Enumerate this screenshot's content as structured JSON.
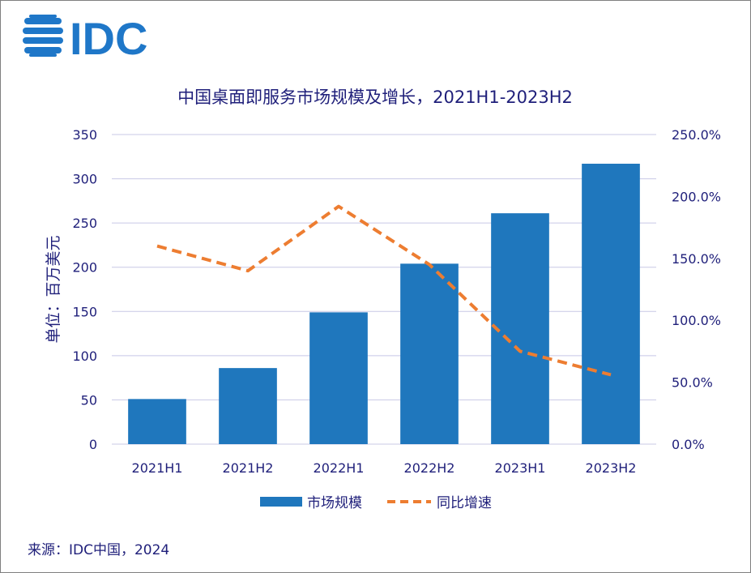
{
  "logo": {
    "text": "IDC"
  },
  "source": "来源：IDC中国，2024",
  "colors": {
    "bar": "#1f77bd",
    "line": "#ed7d31",
    "text": "#1f1f7a",
    "grid": "#c8c8e6",
    "logo": "#1f77c8"
  },
  "chart_data": {
    "type": "bar",
    "title": "中国桌面即服务市场规模及增长，2021H1-2023H2",
    "categories": [
      "2021H1",
      "2021H2",
      "2022H1",
      "2022H2",
      "2023H1",
      "2023H2"
    ],
    "ylabel": "单位：百万美元",
    "ylim": [
      0,
      350
    ],
    "yticks": [
      "0",
      "50",
      "100",
      "150",
      "200",
      "250",
      "300",
      "350"
    ],
    "y2lim": [
      0,
      250
    ],
    "y2ticks": [
      "0.0%",
      "50.0%",
      "100.0%",
      "150.0%",
      "200.0%",
      "250.0%"
    ],
    "series": [
      {
        "name": "市场规模",
        "type": "bar",
        "axis": "left",
        "values": [
          51,
          86,
          149,
          204,
          261,
          317
        ]
      },
      {
        "name": "同比增速",
        "type": "line",
        "axis": "right",
        "style": "dashed",
        "values": [
          160,
          140,
          192,
          145,
          75,
          56
        ]
      }
    ],
    "grid": true,
    "legend": "bottom-center"
  }
}
